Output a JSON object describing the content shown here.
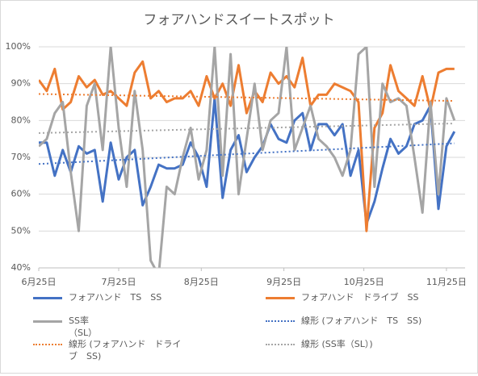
{
  "chart_data": {
    "type": "line",
    "title": "フォアハンドスイートスポット",
    "x": [
      "6月25日",
      "6月28日",
      "7月1日",
      "7月4日",
      "7月7日",
      "7月10日",
      "7月13日",
      "7月16日",
      "7月19日",
      "7月22日",
      "7月25日",
      "7月28日",
      "7月31日",
      "8月3日",
      "8月6日",
      "8月9日",
      "8月12日",
      "8月15日",
      "8月18日",
      "8月21日",
      "8月24日",
      "8月27日",
      "8月30日",
      "9月2日",
      "9月5日",
      "9月8日",
      "9月11日",
      "9月14日",
      "9月17日",
      "9月20日",
      "9月23日",
      "9月26日",
      "9月29日",
      "10月2日",
      "10月5日",
      "10月8日",
      "10月11日",
      "10月14日",
      "10月17日",
      "10月20日",
      "10月23日",
      "10月26日",
      "10月29日",
      "11月1日",
      "11月4日",
      "11月7日",
      "11月10日",
      "11月13日",
      "11月16日",
      "11月19日",
      "11月22日",
      "11月25日",
      "11月28日"
    ],
    "series": [
      {
        "name": "フォアハンド　TS　SS",
        "color": "#4472c4",
        "values": [
          74,
          74,
          65,
          72,
          66,
          73,
          71,
          72,
          58,
          74,
          64,
          70,
          72,
          57,
          62,
          68,
          67,
          67,
          68,
          74,
          70,
          62,
          86,
          59,
          72,
          76,
          66,
          70,
          73,
          79,
          75,
          74,
          80,
          82,
          72,
          79,
          79,
          76,
          79,
          65,
          72,
          52,
          58,
          67,
          75,
          71,
          73,
          79,
          80,
          84,
          56,
          73,
          77
        ]
      },
      {
        "name": "フォアハンド　ドライブ　SS",
        "color": "#ed7d31",
        "values": [
          91,
          88,
          94,
          83,
          85,
          92,
          89,
          91,
          87,
          88,
          86,
          84,
          93,
          96,
          86,
          88,
          85,
          86,
          86,
          88,
          84,
          92,
          86,
          90,
          84,
          95,
          82,
          88,
          85,
          93,
          90,
          92,
          89,
          97,
          84,
          87,
          87,
          90,
          89,
          88,
          85,
          50,
          78,
          82,
          95,
          88,
          86,
          84,
          92,
          83,
          93,
          94,
          94
        ]
      },
      {
        "name": "SS率（SL）",
        "color": "#a5a5a5",
        "values": [
          73,
          75,
          82,
          85,
          66,
          50,
          84,
          90,
          72,
          100,
          78,
          62,
          88,
          72,
          42,
          38,
          62,
          60,
          70,
          78,
          64,
          72,
          100,
          65,
          98,
          60,
          75,
          90,
          72,
          80,
          82,
          100,
          72,
          78,
          84,
          75,
          73,
          70,
          65,
          72,
          98,
          100,
          62,
          90,
          85,
          86,
          84,
          70,
          55,
          85,
          60,
          86,
          80
        ]
      },
      {
        "name": "線形 (フォアハンド　TS　SS)",
        "color": "#4472c4",
        "dashed": true,
        "x": [
          "6月25日",
          "11月28日"
        ],
        "values": [
          68.2,
          73.8
        ]
      },
      {
        "name": "線形 (フォアハンド　ドライブ　SS)",
        "color": "#ed7d31",
        "dashed": true,
        "x": [
          "6月25日",
          "11月28日"
        ],
        "values": [
          87.2,
          85.3
        ]
      },
      {
        "name": "線形 (SS率（SL）)",
        "color": "#a5a5a5",
        "dashed": true,
        "x": [
          "6月25日",
          "11月28日"
        ],
        "values": [
          76.6,
          79.2
        ]
      }
    ],
    "xlim": [
      "6月25日",
      "12月2日"
    ],
    "xticks": [
      "6月25日",
      "7月25日",
      "8月25日",
      "9月25日",
      "10月25日",
      "11月25日"
    ],
    "ylim": [
      40,
      100
    ],
    "yticks": [
      {
        "value": 40,
        "label": "40%"
      },
      {
        "value": 50,
        "label": "50%"
      },
      {
        "value": 60,
        "label": "60%"
      },
      {
        "value": 70,
        "label": "70%"
      },
      {
        "value": 80,
        "label": "80%"
      },
      {
        "value": 90,
        "label": "90%"
      },
      {
        "value": 100,
        "label": "100%"
      }
    ],
    "grid": true
  }
}
